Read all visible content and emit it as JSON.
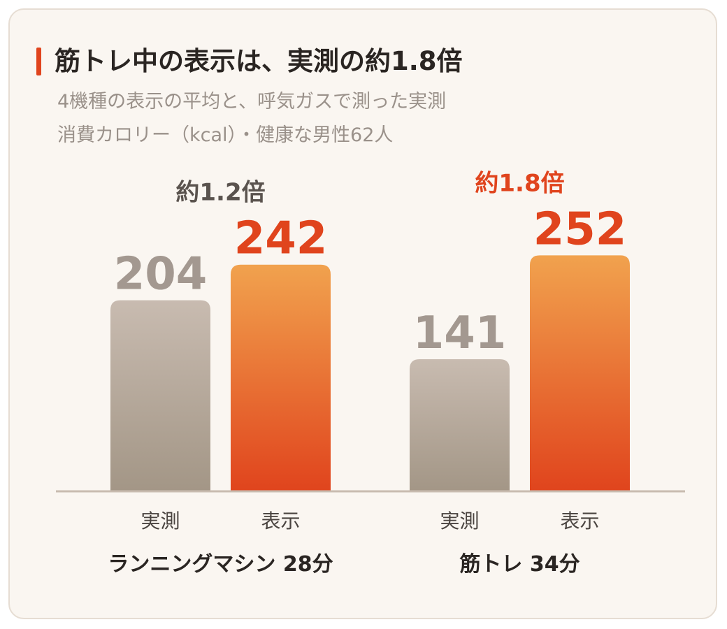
{
  "title": "筋トレ中の表示は、実測の約1.8倍",
  "subtitle_lines": [
    "4機種の表示の平均と、呼気ガスで測った実測",
    "消費カロリー（kcal）・健康な男性62人"
  ],
  "colors": {
    "accent": "#e0441d",
    "actual_top": "#c8bbb0",
    "actual_bottom": "#a39686",
    "display_top": "#f1a24e",
    "display_bottom": "#e0441d",
    "ratio_neutral": "#5a534e",
    "ratio_accent": "#e0441d"
  },
  "chart_data": {
    "type": "bar",
    "categories": [
      "ランニングマシン 28分",
      "筋トレ 34分"
    ],
    "series": [
      {
        "name": "実測",
        "values": [
          204,
          141
        ]
      },
      {
        "name": "表示",
        "values": [
          242,
          252
        ]
      }
    ],
    "ratio_labels": [
      "約1.2倍",
      "約1.8倍"
    ],
    "ylim": [
      0,
      260
    ],
    "unit": "kcal"
  }
}
